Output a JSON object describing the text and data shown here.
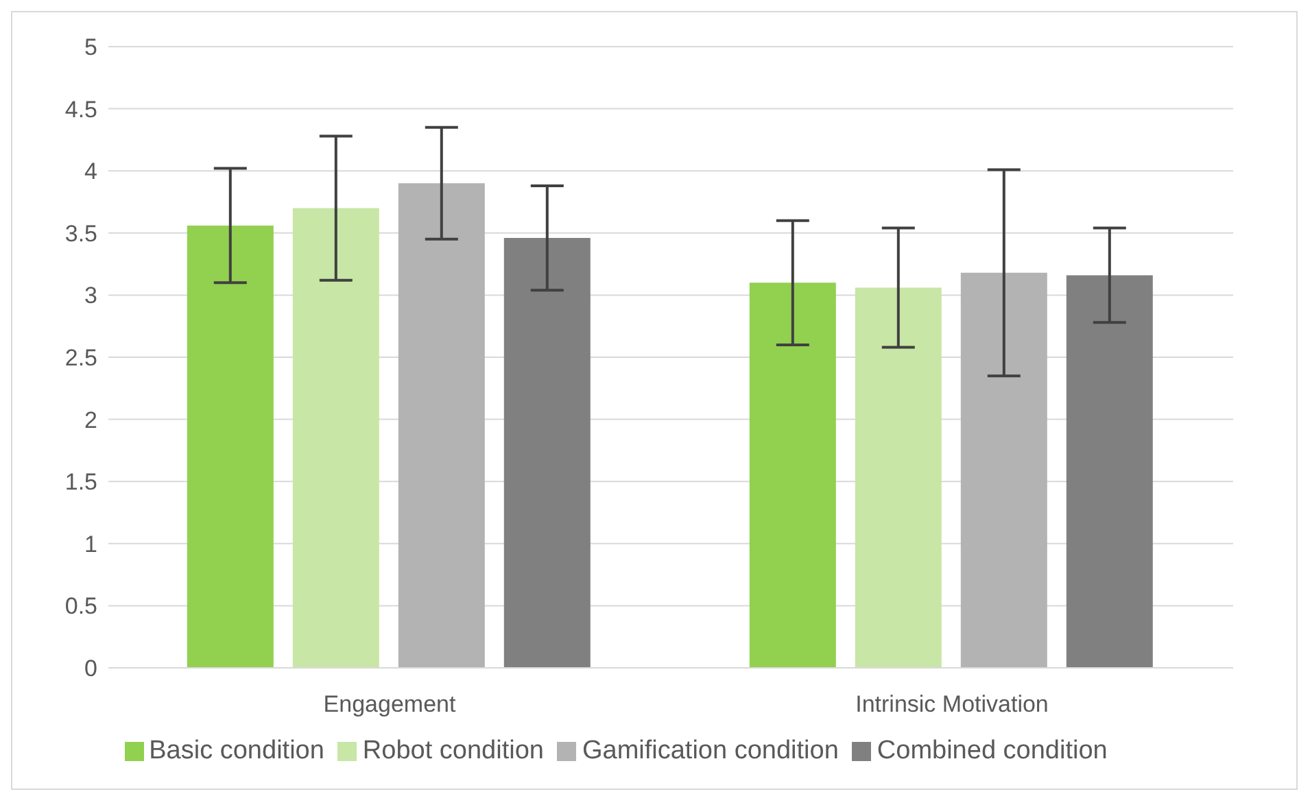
{
  "chart_data": {
    "type": "bar",
    "categories": [
      "Engagement",
      "Intrinsic Motivation"
    ],
    "series": [
      {
        "name": "Basic condition",
        "color": "#92d050",
        "values": [
          3.56,
          3.1
        ],
        "errors": [
          0.46,
          0.5
        ]
      },
      {
        "name": "Robot condition",
        "color": "#c8e6a6",
        "values": [
          3.7,
          3.06
        ],
        "errors": [
          0.58,
          0.48
        ]
      },
      {
        "name": "Gamification condition",
        "color": "#b3b3b3",
        "values": [
          3.9,
          3.18
        ],
        "errors": [
          0.45,
          0.83
        ]
      },
      {
        "name": "Combined condition",
        "color": "#808080",
        "values": [
          3.46,
          3.16
        ],
        "errors": [
          0.42,
          0.38
        ]
      }
    ],
    "ylim": [
      0,
      5
    ],
    "yticks": [
      0,
      0.5,
      1,
      1.5,
      2,
      2.5,
      3,
      3.5,
      4,
      4.5,
      5
    ],
    "grid": "y",
    "legend": "bottom"
  }
}
